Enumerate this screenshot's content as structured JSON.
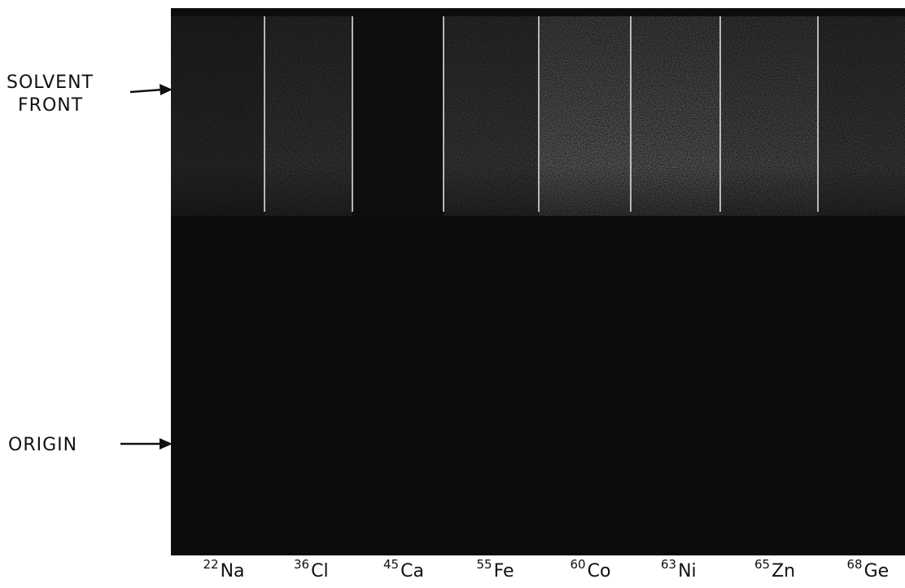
{
  "annotations": {
    "solvent_front": [
      "SOLVENT",
      "FRONT"
    ],
    "origin": "ORIGIN"
  },
  "lanes": [
    {
      "mass": "22",
      "symbol": "Na"
    },
    {
      "mass": "36",
      "symbol": "Cl"
    },
    {
      "mass": "45",
      "symbol": "Ca"
    },
    {
      "mass": "55",
      "symbol": "Fe"
    },
    {
      "mass": "60",
      "symbol": "Co"
    },
    {
      "mass": "63",
      "symbol": "Ni"
    },
    {
      "mass": "65",
      "symbol": "Zn"
    },
    {
      "mass": "68",
      "symbol": "Ge"
    }
  ]
}
